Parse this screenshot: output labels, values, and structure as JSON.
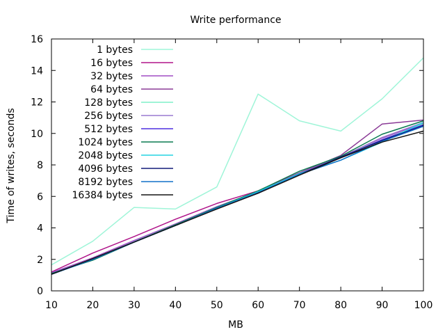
{
  "chart_data": {
    "type": "line",
    "title": "Write performance",
    "xlabel": "MB",
    "ylabel": "Time of writes, seconds",
    "xlim": [
      10,
      100
    ],
    "ylim": [
      0,
      16
    ],
    "xticks": [
      10,
      20,
      30,
      40,
      50,
      60,
      70,
      80,
      90,
      100
    ],
    "yticks": [
      0,
      2,
      4,
      6,
      8,
      10,
      12,
      14,
      16
    ],
    "x": [
      10,
      20,
      30,
      40,
      50,
      60,
      70,
      80,
      90,
      100
    ],
    "grid": false,
    "legend_position": "top-left",
    "series": [
      {
        "name": "1 bytes",
        "color": "#9ff5d8",
        "values": [
          1.65,
          3.15,
          5.3,
          5.2,
          6.6,
          12.5,
          10.8,
          10.15,
          12.2,
          14.8
        ]
      },
      {
        "name": "16 bytes",
        "color": "#b0148a",
        "values": [
          1.2,
          2.4,
          3.45,
          4.55,
          5.55,
          6.35,
          7.5,
          8.5,
          9.55,
          10.5
        ]
      },
      {
        "name": "32 bytes",
        "color": "#a04cc4",
        "values": [
          1.15,
          2.1,
          3.2,
          4.25,
          5.35,
          6.3,
          7.45,
          8.5,
          9.7,
          10.65
        ]
      },
      {
        "name": "64 bytes",
        "color": "#8a3a96",
        "values": [
          1.1,
          2.05,
          3.15,
          4.2,
          5.3,
          6.25,
          7.5,
          8.6,
          10.6,
          10.85
        ]
      },
      {
        "name": "128 bytes",
        "color": "#7ef0c8",
        "values": [
          1.1,
          2.0,
          3.15,
          4.2,
          5.3,
          6.3,
          7.45,
          8.5,
          9.6,
          10.6
        ]
      },
      {
        "name": "256 bytes",
        "color": "#9a7ad0",
        "values": [
          1.1,
          2.05,
          3.15,
          4.2,
          5.35,
          6.3,
          7.45,
          8.5,
          9.75,
          10.7
        ]
      },
      {
        "name": "512 bytes",
        "color": "#4d2ee0",
        "values": [
          1.1,
          2.0,
          3.1,
          4.15,
          5.3,
          6.25,
          7.4,
          8.45,
          9.6,
          10.55
        ]
      },
      {
        "name": "1024 bytes",
        "color": "#0a7a50",
        "values": [
          1.1,
          1.95,
          3.1,
          4.2,
          5.3,
          6.35,
          7.6,
          8.55,
          9.95,
          10.8
        ]
      },
      {
        "name": "2048 bytes",
        "color": "#25d4e2",
        "values": [
          1.05,
          2.0,
          3.1,
          4.15,
          5.25,
          6.3,
          7.45,
          8.3,
          9.45,
          10.7
        ]
      },
      {
        "name": "4096 bytes",
        "color": "#101a78",
        "values": [
          1.05,
          2.0,
          3.1,
          4.15,
          5.25,
          6.2,
          7.4,
          8.5,
          9.55,
          10.5
        ]
      },
      {
        "name": "8192 bytes",
        "color": "#1070c8",
        "values": [
          1.05,
          2.0,
          3.1,
          4.15,
          5.25,
          6.25,
          7.4,
          8.3,
          9.5,
          10.45
        ]
      },
      {
        "name": "16384 bytes",
        "color": "#141414",
        "values": [
          1.05,
          2.05,
          3.1,
          4.15,
          5.2,
          6.2,
          7.35,
          8.45,
          9.45,
          10.15
        ]
      }
    ]
  }
}
